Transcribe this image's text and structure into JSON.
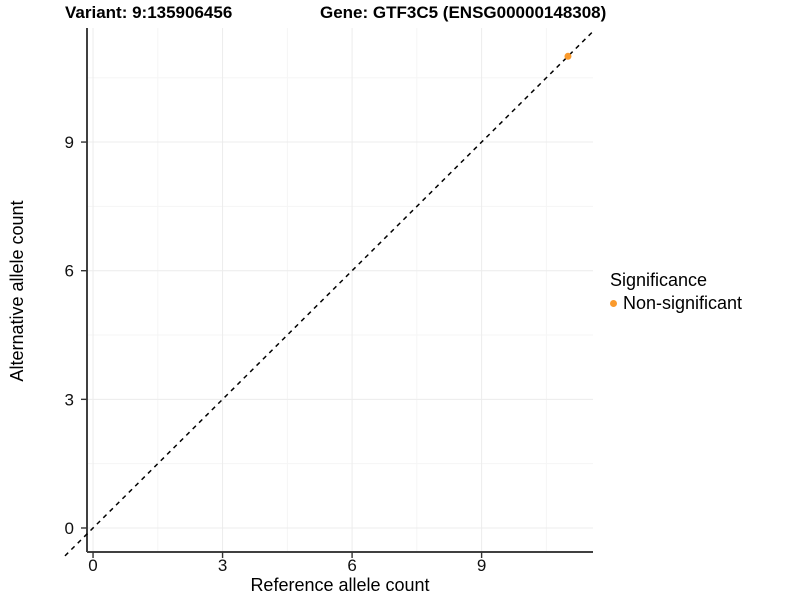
{
  "header": {
    "variant_title": "Variant: 9:135906456",
    "gene_title": "Gene: GTF3C5 (ENSG00000148308)"
  },
  "chart_data": {
    "type": "scatter",
    "xlabel": "Reference allele count",
    "ylabel": "Alternative allele count",
    "xlim": [
      -0.14,
      11.58
    ],
    "ylim": [
      -0.56,
      11.66
    ],
    "x_ticks": [
      0,
      3,
      6,
      9
    ],
    "y_ticks": [
      0,
      3,
      6,
      9
    ],
    "x_minor_gridlines": [
      1.5,
      4.5,
      7.5,
      10.5
    ],
    "y_minor_gridlines": [
      1.5,
      4.5,
      7.5,
      10.5
    ],
    "grid": true,
    "identity_line": {
      "style": "dashed",
      "slope": 1,
      "intercept": 0,
      "color": "#000000",
      "span": [
        -0.65,
        11.62
      ]
    },
    "series": [
      {
        "name": "Non-significant",
        "color": "#FA9A2C",
        "points": [
          [
            11,
            11
          ]
        ]
      }
    ],
    "legend": {
      "title": "Significance",
      "position": "right",
      "items": [
        {
          "label": "Non-significant",
          "color": "#FA9A2C"
        }
      ]
    }
  },
  "colors": {
    "axis_line": "#404040",
    "tick_mark": "#333333",
    "tick_label": "#111111",
    "grid_major": "#ECECEC",
    "grid_minor": "#F5F5F5",
    "background": "#FFFFFF"
  }
}
